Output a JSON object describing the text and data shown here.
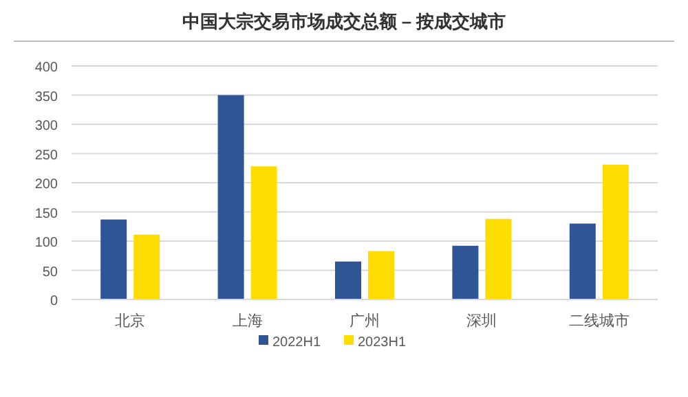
{
  "chart_data": {
    "type": "bar",
    "title": "中国大宗交易市场成交总额 – 按成交城市",
    "categories": [
      "北京",
      "上海",
      "广州",
      "深圳",
      "二线城市"
    ],
    "series": [
      {
        "name": "2022H1",
        "color": "#2f5597",
        "values": [
          137,
          350,
          65,
          92,
          130
        ]
      },
      {
        "name": "2023H1",
        "color": "#ffdd00",
        "values": [
          111,
          228,
          83,
          138,
          231
        ]
      }
    ],
    "ylim": [
      0,
      400
    ],
    "yticks": [
      0,
      50,
      100,
      150,
      200,
      250,
      300,
      350,
      400
    ],
    "grid": "y",
    "legend": "bottom"
  }
}
